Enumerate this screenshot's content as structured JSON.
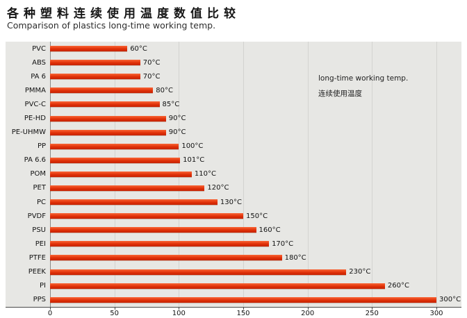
{
  "header": {
    "title_zh": "各种塑料连续使用温度数值比较",
    "title_en": "Comparison of plastics long-time working temp."
  },
  "legend": {
    "line1": "long-time working temp.",
    "line2": "连续使用温度"
  },
  "chart_data": {
    "type": "bar",
    "orientation": "horizontal",
    "title": "各种塑料连续使用温度数值比较 / Comparison of plastics long-time working temp.",
    "categories": [
      "PVC",
      "ABS",
      "PA 6",
      "PMMA",
      "PVC-C",
      "PE-HD",
      "PE-UHMW",
      "PP",
      "PA 6.6",
      "POM",
      "PET",
      "PC",
      "PVDF",
      "PSU",
      "PEI",
      "PTFE",
      "PEEK",
      "PI",
      "PPS"
    ],
    "values": [
      60,
      70,
      70,
      80,
      85,
      90,
      90,
      100,
      101,
      110,
      120,
      130,
      150,
      160,
      170,
      180,
      230,
      260,
      300
    ],
    "value_labels": [
      "60°C",
      "70°C",
      "70°C",
      "80°C",
      "85°C",
      "90°C",
      "90°C",
      "100°C",
      "101°C",
      "110°C",
      "120°C",
      "130°C",
      "150°C",
      "160°C",
      "170°C",
      "180°C",
      "230°C",
      "260°C",
      "300°C"
    ],
    "xlabel": "",
    "ylabel": "",
    "xlim": [
      0,
      300
    ],
    "xticks": [
      0,
      50,
      100,
      150,
      200,
      250,
      300
    ],
    "grid": true,
    "legend_position": "upper right inside plot",
    "colors": {
      "bar_top": "#f96535",
      "bar_bottom": "#c52303",
      "panel_background": "#e7e7e4",
      "gridline": "#d3d3d0"
    }
  }
}
